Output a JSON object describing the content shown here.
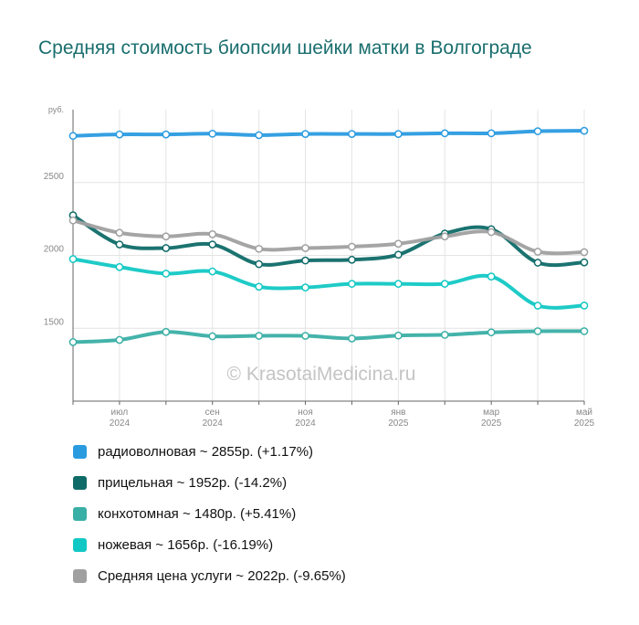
{
  "title": "Средняя стоимость биопсии шейки матки в Волгограде",
  "watermark": "© KrasotaiMedicina.ru",
  "chart_data": {
    "type": "line",
    "yunit": "руб.",
    "ylim": [
      1000,
      3000
    ],
    "yticks": [
      {
        "value": 1500,
        "label": "1500"
      },
      {
        "value": 2000,
        "label": "2000"
      },
      {
        "value": 2500,
        "label": "2500"
      }
    ],
    "x": [
      "2024-06",
      "2024-07",
      "2024-08",
      "2024-09",
      "2024-10",
      "2024-11",
      "2024-12",
      "2025-01",
      "2025-02",
      "2025-03",
      "2025-04",
      "2025-05"
    ],
    "xticks": [
      {
        "index": 1,
        "month": "июл",
        "year": "2024"
      },
      {
        "index": 3,
        "month": "сен",
        "year": "2024"
      },
      {
        "index": 5,
        "month": "ноя",
        "year": "2024"
      },
      {
        "index": 7,
        "month": "янв",
        "year": "2025"
      },
      {
        "index": 9,
        "month": "мар",
        "year": "2025"
      },
      {
        "index": 11,
        "month": "май",
        "year": "2025"
      }
    ],
    "grid": true,
    "legend_position": "bottom",
    "series": [
      {
        "name": "радиоволновая",
        "color": "#2b9be0",
        "legend": "радиоволновая ~ 2855р. (+1.17%)",
        "values": [
          2820,
          2830,
          2830,
          2835,
          2825,
          2833,
          2833,
          2833,
          2838,
          2838,
          2852,
          2855
        ]
      },
      {
        "name": "прицельная",
        "color": "#0f6b68",
        "legend": "прицельная ~ 1952р. (-14.2%)",
        "values": [
          2275,
          2075,
          2050,
          2075,
          1940,
          1965,
          1970,
          2005,
          2150,
          2180,
          1950,
          1952
        ]
      },
      {
        "name": "конхотомная",
        "color": "#3aafa5",
        "legend": "конхотомная ~ 1480р. (+5.41%)",
        "values": [
          1405,
          1420,
          1475,
          1445,
          1448,
          1448,
          1430,
          1450,
          1455,
          1472,
          1480,
          1480
        ]
      },
      {
        "name": "ножевая",
        "color": "#12c8c4",
        "legend": "ножевая ~ 1656р. (-16.19%)",
        "values": [
          1975,
          1920,
          1875,
          1890,
          1785,
          1780,
          1805,
          1805,
          1805,
          1855,
          1655,
          1656
        ]
      },
      {
        "name": "Средняя цена услуги",
        "color": "#a0a0a0",
        "legend": "Средняя цена услуги ~ 2022р. (-9.65%)",
        "values": [
          2240,
          2155,
          2130,
          2145,
          2045,
          2050,
          2060,
          2080,
          2130,
          2160,
          2025,
          2022
        ]
      }
    ]
  }
}
